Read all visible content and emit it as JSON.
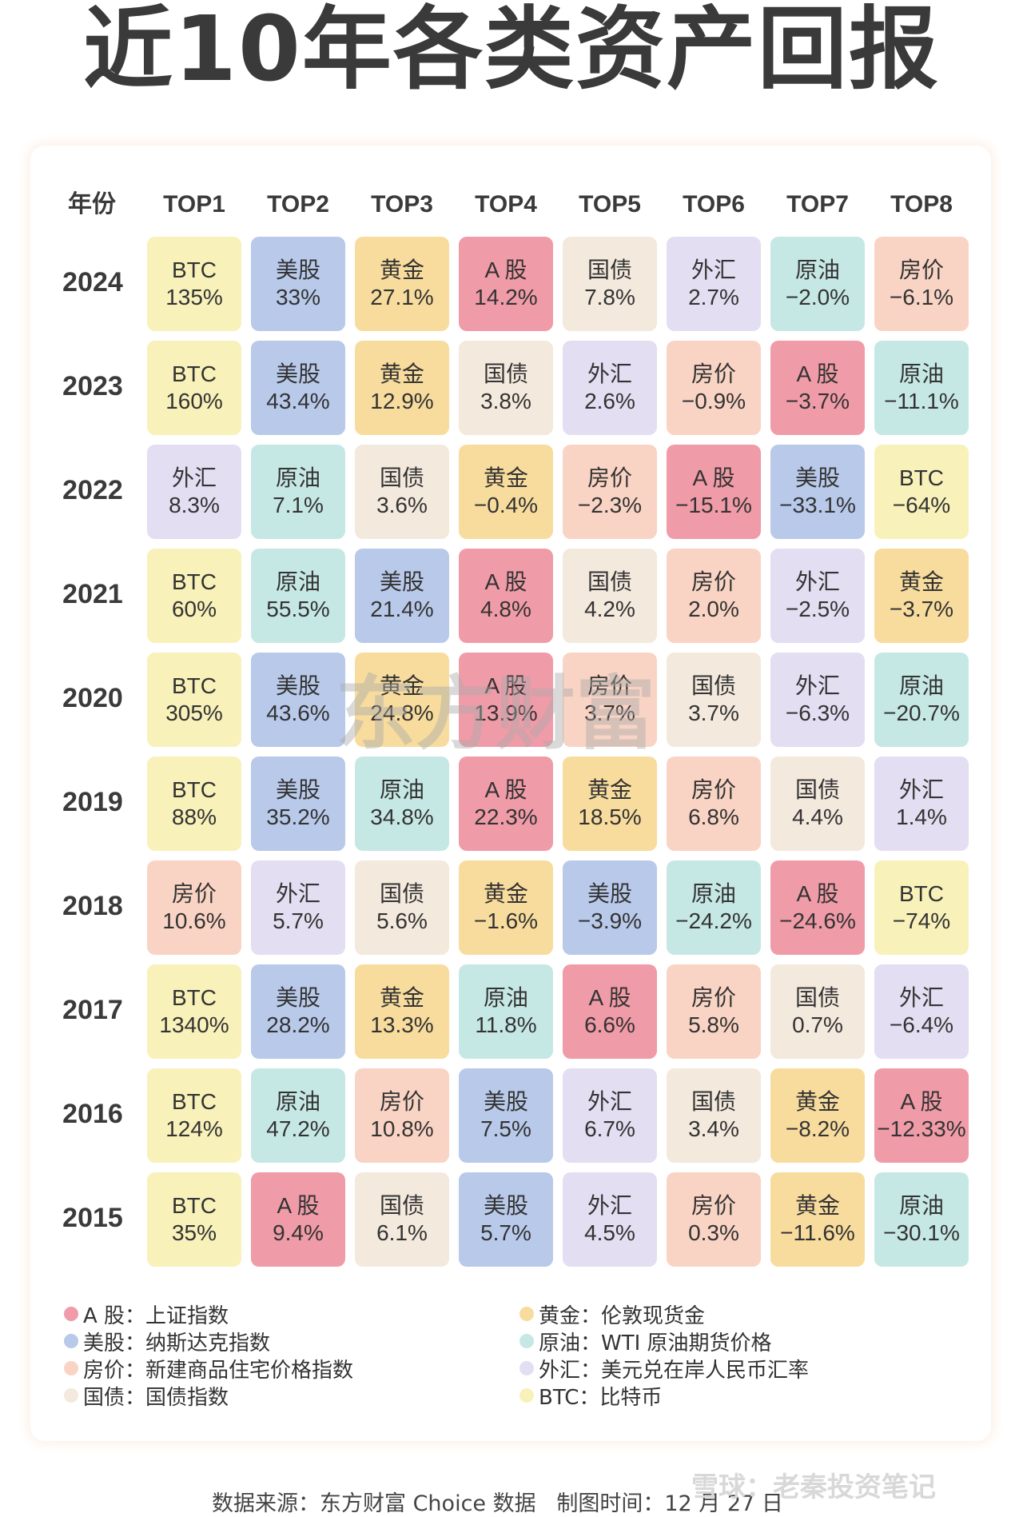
{
  "title": "近10年各类资产回报",
  "header": {
    "year_label": "年份",
    "ranks": [
      "TOP1",
      "TOP2",
      "TOP3",
      "TOP4",
      "TOP5",
      "TOP6",
      "TOP7",
      "TOP8"
    ]
  },
  "asset_colors": {
    "BTC": "#f8f1b9",
    "美股": "#b8c9ea",
    "黄金": "#f8dc9d",
    "A 股": "#f09ba8",
    "国债": "#f3e9dd",
    "外汇": "#e3def2",
    "原油": "#c6e8e5",
    "房价": "#f9d4c4"
  },
  "rows": [
    {
      "year": "2024",
      "cells": [
        [
          "BTC",
          "135%"
        ],
        [
          "美股",
          "33%"
        ],
        [
          "黄金",
          "27.1%"
        ],
        [
          "A 股",
          "14.2%"
        ],
        [
          "国债",
          "7.8%"
        ],
        [
          "外汇",
          "2.7%"
        ],
        [
          "原油",
          "−2.0%"
        ],
        [
          "房价",
          "−6.1%"
        ]
      ]
    },
    {
      "year": "2023",
      "cells": [
        [
          "BTC",
          "160%"
        ],
        [
          "美股",
          "43.4%"
        ],
        [
          "黄金",
          "12.9%"
        ],
        [
          "国债",
          "3.8%"
        ],
        [
          "外汇",
          "2.6%"
        ],
        [
          "房价",
          "−0.9%"
        ],
        [
          "A 股",
          "−3.7%"
        ],
        [
          "原油",
          "−11.1%"
        ]
      ]
    },
    {
      "year": "2022",
      "cells": [
        [
          "外汇",
          "8.3%"
        ],
        [
          "原油",
          "7.1%"
        ],
        [
          "国债",
          "3.6%"
        ],
        [
          "黄金",
          "−0.4%"
        ],
        [
          "房价",
          "−2.3%"
        ],
        [
          "A 股",
          "−15.1%"
        ],
        [
          "美股",
          "−33.1%"
        ],
        [
          "BTC",
          "−64%"
        ]
      ]
    },
    {
      "year": "2021",
      "cells": [
        [
          "BTC",
          "60%"
        ],
        [
          "原油",
          "55.5%"
        ],
        [
          "美股",
          "21.4%"
        ],
        [
          "A 股",
          "4.8%"
        ],
        [
          "国债",
          "4.2%"
        ],
        [
          "房价",
          "2.0%"
        ],
        [
          "外汇",
          "−2.5%"
        ],
        [
          "黄金",
          "−3.7%"
        ]
      ]
    },
    {
      "year": "2020",
      "cells": [
        [
          "BTC",
          "305%"
        ],
        [
          "美股",
          "43.6%"
        ],
        [
          "黄金",
          "24.8%"
        ],
        [
          "A 股",
          "13.9%"
        ],
        [
          "房价",
          "3.7%"
        ],
        [
          "国债",
          "3.7%"
        ],
        [
          "外汇",
          "−6.3%"
        ],
        [
          "原油",
          "−20.7%"
        ]
      ]
    },
    {
      "year": "2019",
      "cells": [
        [
          "BTC",
          "88%"
        ],
        [
          "美股",
          "35.2%"
        ],
        [
          "原油",
          "34.8%"
        ],
        [
          "A 股",
          "22.3%"
        ],
        [
          "黄金",
          "18.5%"
        ],
        [
          "房价",
          "6.8%"
        ],
        [
          "国债",
          "4.4%"
        ],
        [
          "外汇",
          "1.4%"
        ]
      ]
    },
    {
      "year": "2018",
      "cells": [
        [
          "房价",
          "10.6%"
        ],
        [
          "外汇",
          "5.7%"
        ],
        [
          "国债",
          "5.6%"
        ],
        [
          "黄金",
          "−1.6%"
        ],
        [
          "美股",
          "−3.9%"
        ],
        [
          "原油",
          "−24.2%"
        ],
        [
          "A 股",
          "−24.6%"
        ],
        [
          "BTC",
          "−74%"
        ]
      ]
    },
    {
      "year": "2017",
      "cells": [
        [
          "BTC",
          "1340%"
        ],
        [
          "美股",
          "28.2%"
        ],
        [
          "黄金",
          "13.3%"
        ],
        [
          "原油",
          "11.8%"
        ],
        [
          "A 股",
          "6.6%"
        ],
        [
          "房价",
          "5.8%"
        ],
        [
          "国债",
          "0.7%"
        ],
        [
          "外汇",
          "−6.4%"
        ]
      ]
    },
    {
      "year": "2016",
      "cells": [
        [
          "BTC",
          "124%"
        ],
        [
          "原油",
          "47.2%"
        ],
        [
          "房价",
          "10.8%"
        ],
        [
          "美股",
          "7.5%"
        ],
        [
          "外汇",
          "6.7%"
        ],
        [
          "国债",
          "3.4%"
        ],
        [
          "黄金",
          "−8.2%"
        ],
        [
          "A 股",
          "−12.33%"
        ]
      ]
    },
    {
      "year": "2015",
      "cells": [
        [
          "BTC",
          "35%"
        ],
        [
          "A 股",
          "9.4%"
        ],
        [
          "国债",
          "6.1%"
        ],
        [
          "美股",
          "5.7%"
        ],
        [
          "外汇",
          "4.5%"
        ],
        [
          "房价",
          "0.3%"
        ],
        [
          "黄金",
          "−11.6%"
        ],
        [
          "原油",
          "−30.1%"
        ]
      ]
    }
  ],
  "legend": [
    {
      "asset": "A 股",
      "text": "A 股：上证指数"
    },
    {
      "asset": "美股",
      "text": "美股：纳斯达克指数"
    },
    {
      "asset": "房价",
      "text": "房价：新建商品住宅价格指数"
    },
    {
      "asset": "国债",
      "text": "国债：国债指数"
    },
    {
      "asset": "黄金",
      "text": "黄金：伦敦现货金"
    },
    {
      "asset": "原油",
      "text": "原油：WTI 原油期货价格"
    },
    {
      "asset": "外汇",
      "text": "外汇：美元兑在岸人民币汇率"
    },
    {
      "asset": "BTC",
      "text": "BTC：比特币"
    }
  ],
  "footer": "数据来源：东方财富 Choice 数据   制图时间：12 月 27 日",
  "watermark": "雪球：老秦投资笔记",
  "background_watermark": "东方财富"
}
